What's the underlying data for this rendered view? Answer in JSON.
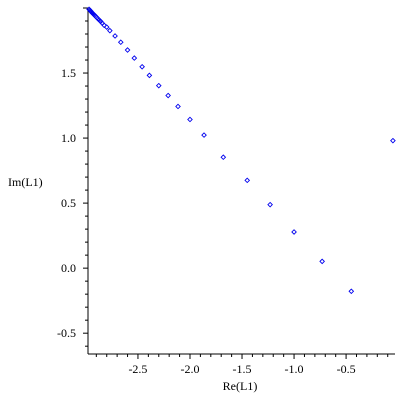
{
  "chart_data": {
    "type": "scatter",
    "xlabel": "Re(L1)",
    "ylabel": "Im(L1)",
    "xlim": [
      -2.98,
      -0.03
    ],
    "ylim": [
      -0.66,
      2.0
    ],
    "xticks": [
      -2.5,
      -2.0,
      -1.5,
      -1.0,
      -0.5
    ],
    "xtick_labels": [
      "-2.5",
      "-2.0",
      "-1.5",
      "-1.0",
      "-0.5"
    ],
    "yticks": [
      -0.5,
      0.0,
      0.5,
      1.0,
      1.5
    ],
    "ytick_labels": [
      "-0.5",
      "0.0",
      "0.5",
      "1.0",
      "1.5"
    ],
    "grid": false,
    "marker": "diamond",
    "marker_color": "#0000ee",
    "series": [
      {
        "x": [
          -2.97,
          -2.962,
          -2.955,
          -2.948,
          -2.94,
          -2.932,
          -2.924,
          -2.915,
          -2.905,
          -2.895,
          -2.884,
          -2.872,
          -2.858,
          -2.843,
          -2.825,
          -2.8,
          -2.77,
          -2.72,
          -2.665,
          -2.6,
          -2.535,
          -2.46,
          -2.39,
          -2.3,
          -2.21,
          -2.115,
          -2.0,
          -1.865,
          -1.68,
          -1.45,
          -1.23,
          -1.0,
          -0.73,
          -0.45,
          -0.05
        ],
        "y": [
          1.99,
          1.983,
          1.977,
          1.97,
          1.963,
          1.957,
          1.95,
          1.943,
          1.935,
          1.926,
          1.917,
          1.907,
          1.897,
          1.883,
          1.867,
          1.853,
          1.826,
          1.785,
          1.737,
          1.677,
          1.615,
          1.548,
          1.482,
          1.403,
          1.327,
          1.243,
          1.143,
          1.023,
          0.853,
          0.675,
          0.488,
          0.278,
          0.052,
          -0.178,
          0.98
        ]
      }
    ]
  }
}
